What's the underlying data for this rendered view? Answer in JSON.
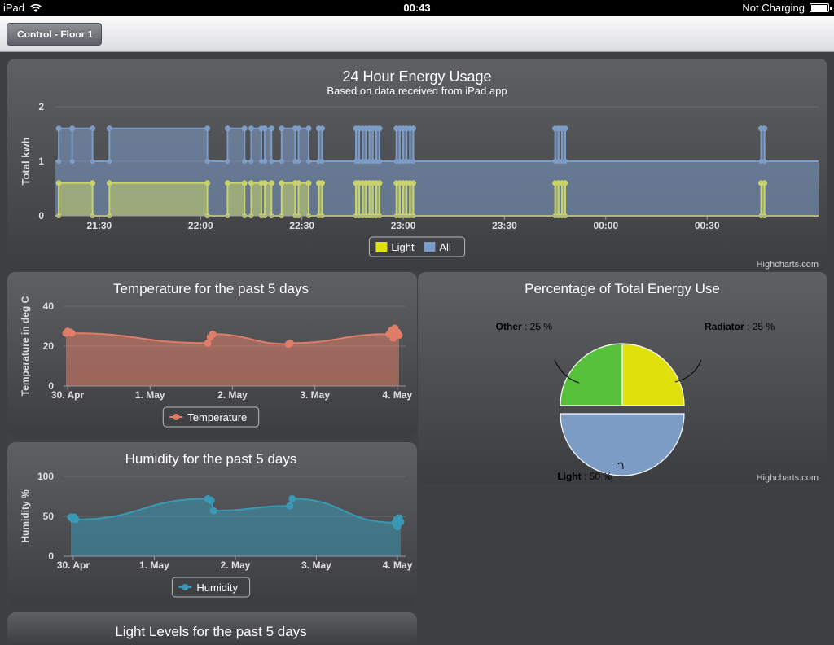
{
  "status_bar": {
    "device": "iPad",
    "time": "00:43",
    "battery_status": "Not Charging"
  },
  "nav": {
    "back_label": "Control - Floor 1"
  },
  "colors": {
    "light": "#c8d46b",
    "all": "#7d9dc9",
    "temperature": "#e07d68",
    "humidity": "#3a98b4",
    "pie_radiator": "#dfe00c",
    "pie_other": "#57c13b",
    "pie_light": "#7c9cc6"
  },
  "credit": "Highcharts.com",
  "chart_data": [
    {
      "type": "area",
      "title": "24 Hour Energy Usage",
      "subtitle": "Based on data received from iPad app",
      "ylabel": "Total kwh",
      "yticks": [
        "0",
        "1",
        "2"
      ],
      "ylim": [
        0,
        2
      ],
      "xlim": [
        "21:17",
        "01:03"
      ],
      "xticks": [
        "21:30",
        "22:00",
        "22:30",
        "23:00",
        "23:30",
        "00:00",
        "00:30"
      ],
      "legend": [
        "Light",
        "All"
      ],
      "series": [
        {
          "name": "All",
          "high": 1.6,
          "low": 1.0,
          "high_intervals": [
            [
              "21:18",
              "21:22"
            ],
            [
              "21:22",
              "21:28"
            ],
            [
              "21:33",
              "22:02"
            ],
            [
              "22:08",
              "22:13"
            ],
            [
              "22:15",
              "22:18"
            ],
            [
              "22:19",
              "22:21"
            ],
            [
              "22:24",
              "22:28"
            ],
            [
              "22:29",
              "22:32"
            ],
            [
              "22:35",
              "22:36"
            ],
            [
              "22:46",
              "22:47"
            ],
            [
              "22:48",
              "22:49"
            ],
            [
              "22:50",
              "22:51"
            ],
            [
              "22:52",
              "22:53"
            ],
            [
              "22:58",
              "22:59"
            ],
            [
              "23:00",
              "23:01"
            ],
            [
              "23:02",
              "23:03"
            ],
            [
              "23:45",
              "23:46"
            ],
            [
              "23:47",
              "23:48"
            ],
            [
              "00:46",
              "00:47"
            ]
          ]
        },
        {
          "name": "Light",
          "high": 0.6,
          "low": 0.0,
          "high_intervals": [
            [
              "21:18",
              "21:28"
            ],
            [
              "21:33",
              "22:02"
            ],
            [
              "22:08",
              "22:13"
            ],
            [
              "22:15",
              "22:18"
            ],
            [
              "22:19",
              "22:21"
            ],
            [
              "22:24",
              "22:28"
            ],
            [
              "22:29",
              "22:32"
            ],
            [
              "22:35",
              "22:36"
            ],
            [
              "22:46",
              "22:47"
            ],
            [
              "22:48",
              "22:49"
            ],
            [
              "22:50",
              "22:51"
            ],
            [
              "22:52",
              "22:53"
            ],
            [
              "22:58",
              "22:59"
            ],
            [
              "23:00",
              "23:01"
            ],
            [
              "23:02",
              "23:03"
            ],
            [
              "23:45",
              "23:46"
            ],
            [
              "23:47",
              "23:48"
            ],
            [
              "00:46",
              "00:47"
            ]
          ]
        }
      ]
    },
    {
      "type": "area",
      "title": "Temperature for the past 5 days",
      "ylabel": "Temperature in deg C",
      "yticks": [
        "0",
        "20",
        "40"
      ],
      "ylim": [
        0,
        40
      ],
      "xlim": [
        -0.05,
        4.1
      ],
      "xticks": [
        {
          "label": "30. Apr",
          "x": 0
        },
        {
          "label": "1. May",
          "x": 1
        },
        {
          "label": "2. May",
          "x": 2
        },
        {
          "label": "3. May",
          "x": 3
        },
        {
          "label": "4. May",
          "x": 4
        }
      ],
      "legend": [
        "Temperature"
      ],
      "series": [
        {
          "name": "Temperature",
          "x": [
            -0.02,
            0.0,
            0.03,
            0.05,
            1.7,
            1.73,
            1.76,
            2.68,
            2.7,
            3.9,
            3.93,
            3.95,
            3.97,
            4.0,
            4.02
          ],
          "y": [
            26.5,
            27.5,
            27,
            26.5,
            21.5,
            24.5,
            26,
            21,
            21.5,
            26,
            28,
            24,
            29,
            27,
            25.5
          ]
        }
      ]
    },
    {
      "type": "area",
      "title": "Humidity for the past 5 days",
      "ylabel": "Humidity %",
      "yticks": [
        "0",
        "50",
        "100"
      ],
      "ylim": [
        0,
        100
      ],
      "xlim": [
        -0.12,
        4.1
      ],
      "xticks": [
        {
          "label": "30. Apr",
          "x": 0
        },
        {
          "label": "1. May",
          "x": 1
        },
        {
          "label": "2. May",
          "x": 2
        },
        {
          "label": "3. May",
          "x": 3
        },
        {
          "label": "4. May",
          "x": 4
        }
      ],
      "legend": [
        "Humidity"
      ],
      "series": [
        {
          "name": "Humidity",
          "x": [
            -0.03,
            -0.01,
            0.0,
            0.01,
            0.03,
            1.66,
            1.7,
            1.73,
            2.67,
            2.7,
            3.97,
            3.99,
            4.0,
            4.02,
            4.04
          ],
          "y": [
            49,
            47,
            48,
            49,
            46,
            72,
            70,
            57,
            63,
            72,
            42,
            46,
            37,
            48,
            43
          ]
        }
      ]
    },
    {
      "type": "pie",
      "title": "Percentage of Total Energy Use",
      "slices": [
        {
          "name": "Radiator",
          "value": 25,
          "label": ": 25 %"
        },
        {
          "name": "Light",
          "value": 50,
          "label": ": 50 %"
        },
        {
          "name": "Other",
          "value": 25,
          "label": ": 25 %"
        }
      ]
    },
    {
      "type": "area",
      "title": "Light Levels for the past 5 days"
    }
  ]
}
